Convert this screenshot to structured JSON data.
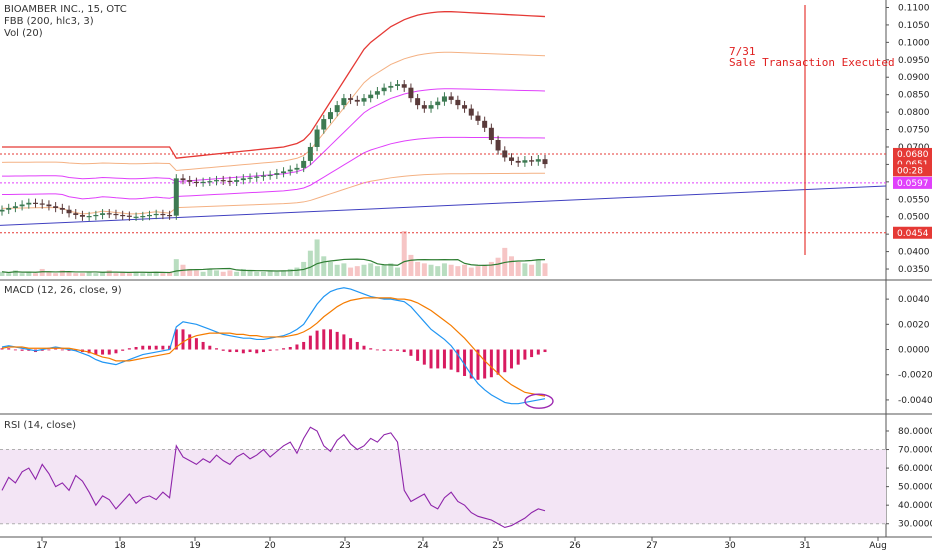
{
  "header": {
    "symbol_line": "BIOAMBER INC., 15, OTC",
    "fbb_line": "FBB (200, hlc3, 3)",
    "vol_line": "Vol (20)"
  },
  "macd_label": "MACD (12, 26, close, 9)",
  "rsi_label": "RSI (14, close)",
  "annotation": {
    "date": "7/31",
    "text": "Sale Transaction Executed"
  },
  "colors": {
    "up": "#3d7a52",
    "down": "#5a3a3a",
    "fbb_outer": "#e53935",
    "fbb_mid": "#f4b183",
    "fbb_inner": "#e040fb",
    "trend": "#4040c0",
    "macd": "#2196f3",
    "signal": "#f57c00",
    "hist": "#d81b60",
    "rsi": "#8e24aa",
    "rsi_band": "#f3e5f5",
    "vol_up": "#a8d5b0",
    "vol_down": "#f4b6b6",
    "level_red": "#e53935",
    "level_magenta": "#e040fb"
  },
  "chart_data": [
    {
      "type": "candlestick",
      "title": "BIOAMBER INC., 15, OTC",
      "x_ticks": [
        "17",
        "18",
        "19",
        "20",
        "23",
        "24",
        "25",
        "26",
        "27",
        "30",
        "31",
        "Aug"
      ],
      "ylim": [
        0.033,
        0.111
      ],
      "y_ticks": [
        "0.0350",
        "0.0400",
        "0.0450",
        "0.0500",
        "0.0550",
        "0.0600",
        "0.0650",
        "0.0700",
        "0.0750",
        "0.0800",
        "0.0850",
        "0.0900",
        "0.0950",
        "0.1000",
        "0.1050",
        "0.1100"
      ],
      "price_tags": [
        {
          "label": "0.0680",
          "value": 0.068,
          "color": "#e53935"
        },
        {
          "label": "0.0651",
          "value": 0.0651,
          "color": "#e53935"
        },
        {
          "label": "00:28",
          "value": 0.0633,
          "color": "#e53935"
        },
        {
          "label": "0.0597",
          "value": 0.0597,
          "color": "#e040fb"
        },
        {
          "label": "0.0454",
          "value": 0.0454,
          "color": "#e53935"
        }
      ],
      "horizontal_levels": [
        0.068,
        0.0597,
        0.0454
      ],
      "close_series": [
        0.052,
        0.0525,
        0.053,
        0.0535,
        0.054,
        0.0538,
        0.0535,
        0.053,
        0.0525,
        0.052,
        0.051,
        0.0505,
        0.05,
        0.0502,
        0.0505,
        0.051,
        0.0508,
        0.0505,
        0.0503,
        0.05,
        0.05,
        0.0502,
        0.0505,
        0.0508,
        0.0505,
        0.0503,
        0.061,
        0.0605,
        0.06,
        0.0598,
        0.06,
        0.0602,
        0.0605,
        0.0603,
        0.06,
        0.0605,
        0.061,
        0.0612,
        0.0615,
        0.0618,
        0.062,
        0.0625,
        0.063,
        0.0635,
        0.064,
        0.066,
        0.07,
        0.075,
        0.078,
        0.08,
        0.082,
        0.084,
        0.0835,
        0.083,
        0.084,
        0.085,
        0.086,
        0.087,
        0.0875,
        0.088,
        0.087,
        0.084,
        0.082,
        0.081,
        0.082,
        0.083,
        0.0845,
        0.0835,
        0.082,
        0.081,
        0.079,
        0.0775,
        0.0755,
        0.072,
        0.069,
        0.067,
        0.066,
        0.0655,
        0.0662,
        0.0658,
        0.0665,
        0.0651
      ],
      "fbb_upper": [
        0.07,
        0.07,
        0.07,
        0.07,
        0.07,
        0.07,
        0.07,
        0.07,
        0.07,
        0.07,
        0.07,
        0.07,
        0.07,
        0.07,
        0.07,
        0.07,
        0.07,
        0.07,
        0.07,
        0.07,
        0.07,
        0.07,
        0.07,
        0.07,
        0.07,
        0.07,
        0.0668,
        0.067,
        0.0672,
        0.0674,
        0.0676,
        0.0678,
        0.068,
        0.0682,
        0.0684,
        0.0686,
        0.0688,
        0.069,
        0.0692,
        0.0694,
        0.0696,
        0.0698,
        0.07,
        0.0705,
        0.071,
        0.072,
        0.074,
        0.077,
        0.08,
        0.083,
        0.086,
        0.089,
        0.092,
        0.095,
        0.098,
        0.1,
        0.1015,
        0.103,
        0.1045,
        0.1055,
        0.1065,
        0.1072,
        0.1078,
        0.1082,
        0.1085,
        0.1087,
        0.1088,
        0.1088,
        0.1087,
        0.1086,
        0.1085,
        0.1084,
        0.1083,
        0.1082,
        0.1081,
        0.108,
        0.1079,
        0.1078,
        0.1077,
        0.1076,
        0.1075,
        0.1074
      ],
      "volume_series": [
        0.3,
        0.2,
        0.4,
        0.2,
        0.3,
        0.2,
        0.5,
        0.3,
        0.2,
        0.4,
        0.3,
        0.2,
        0.2,
        0.3,
        0.2,
        0.3,
        0.4,
        0.2,
        0.3,
        0.2,
        0.3,
        0.2,
        0.2,
        0.3,
        0.2,
        0.3,
        1.2,
        0.8,
        0.5,
        0.4,
        0.3,
        0.5,
        0.4,
        0.3,
        0.4,
        0.3,
        0.5,
        0.4,
        0.3,
        0.3,
        0.4,
        0.3,
        0.4,
        0.5,
        0.6,
        1.0,
        1.8,
        2.6,
        1.4,
        1.0,
        0.8,
        0.9,
        0.6,
        0.7,
        0.8,
        0.9,
        0.7,
        0.8,
        0.9,
        0.6,
        3.2,
        1.5,
        1.0,
        0.9,
        0.8,
        0.7,
        0.9,
        0.8,
        0.7,
        0.8,
        0.6,
        0.7,
        0.8,
        1.0,
        1.3,
        2.0,
        1.4,
        1.0,
        0.9,
        0.8,
        1.2,
        0.9
      ]
    },
    {
      "type": "line",
      "title": "MACD (12, 26, close, 9)",
      "ylim": [
        -0.0048,
        0.0052
      ],
      "y_ticks": [
        "0.0040",
        "0.0020",
        "0.0000",
        "-0.0020",
        "-0.0040"
      ],
      "macd": [
        0.0002,
        0.0003,
        0.0002,
        0.0001,
        0.0,
        -0.0001,
        0.0,
        0.0001,
        0.0002,
        0.0001,
        0.0,
        -0.0001,
        -0.0003,
        -0.0005,
        -0.0008,
        -0.001,
        -0.0011,
        -0.0012,
        -0.001,
        -0.0008,
        -0.0006,
        -0.0004,
        -0.0003,
        -0.0002,
        -0.0001,
        0.0,
        0.0018,
        0.0022,
        0.0021,
        0.002,
        0.0018,
        0.0016,
        0.0014,
        0.0012,
        0.0011,
        0.001,
        0.0009,
        0.0009,
        0.0008,
        0.0008,
        0.0009,
        0.001,
        0.0011,
        0.0013,
        0.0016,
        0.002,
        0.0028,
        0.0036,
        0.0042,
        0.0046,
        0.0048,
        0.0049,
        0.0048,
        0.0046,
        0.0044,
        0.0042,
        0.0041,
        0.004,
        0.004,
        0.0039,
        0.0038,
        0.0034,
        0.0028,
        0.0022,
        0.0016,
        0.0012,
        0.0008,
        0.0003,
        -0.0004,
        -0.0012,
        -0.002,
        -0.0027,
        -0.0032,
        -0.0036,
        -0.0039,
        -0.0042,
        -0.0043,
        -0.0043,
        -0.0042,
        -0.0041,
        -0.004,
        -0.0039
      ],
      "signal": [
        0.0001,
        0.0002,
        0.0002,
        0.0002,
        0.0001,
        0.0001,
        0.0001,
        0.0001,
        0.0001,
        0.0001,
        0.0001,
        0.0,
        -0.0001,
        -0.0002,
        -0.0004,
        -0.0006,
        -0.0007,
        -0.0009,
        -0.0009,
        -0.0009,
        -0.0008,
        -0.0007,
        -0.0006,
        -0.0005,
        -0.0004,
        -0.0003,
        0.0002,
        0.0006,
        0.0009,
        0.0011,
        0.0012,
        0.0013,
        0.0013,
        0.0013,
        0.0013,
        0.0012,
        0.0012,
        0.0011,
        0.0011,
        0.001,
        0.001,
        0.001,
        0.001,
        0.0011,
        0.0012,
        0.0014,
        0.0017,
        0.0021,
        0.0026,
        0.003,
        0.0034,
        0.0037,
        0.0039,
        0.004,
        0.0041,
        0.0041,
        0.0041,
        0.0041,
        0.0041,
        0.004,
        0.004,
        0.0039,
        0.0037,
        0.0034,
        0.0031,
        0.0027,
        0.0023,
        0.0019,
        0.0014,
        0.0009,
        0.0003,
        -0.0003,
        -0.0009,
        -0.0014,
        -0.0019,
        -0.0024,
        -0.0028,
        -0.0031,
        -0.0034,
        -0.0035,
        -0.0036,
        -0.0037
      ]
    },
    {
      "type": "line",
      "title": "RSI (14, close)",
      "ylim": [
        25,
        87
      ],
      "band": [
        30,
        70
      ],
      "y_ticks": [
        "80.0000",
        "70.0000",
        "60.0000",
        "50.0000",
        "40.0000",
        "30.0000"
      ],
      "values": [
        48,
        55,
        52,
        58,
        60,
        54,
        62,
        57,
        50,
        52,
        48,
        56,
        53,
        47,
        40,
        45,
        43,
        38,
        42,
        46,
        41,
        44,
        45,
        43,
        47,
        44,
        72,
        66,
        64,
        62,
        65,
        63,
        67,
        64,
        62,
        66,
        68,
        65,
        67,
        70,
        66,
        69,
        72,
        74,
        68,
        76,
        82,
        80,
        72,
        69,
        75,
        78,
        73,
        70,
        72,
        76,
        74,
        78,
        79,
        74,
        48,
        42,
        44,
        46,
        40,
        38,
        44,
        47,
        42,
        40,
        36,
        34,
        33,
        32,
        30,
        28,
        29,
        31,
        33,
        36,
        38,
        37
      ]
    }
  ]
}
